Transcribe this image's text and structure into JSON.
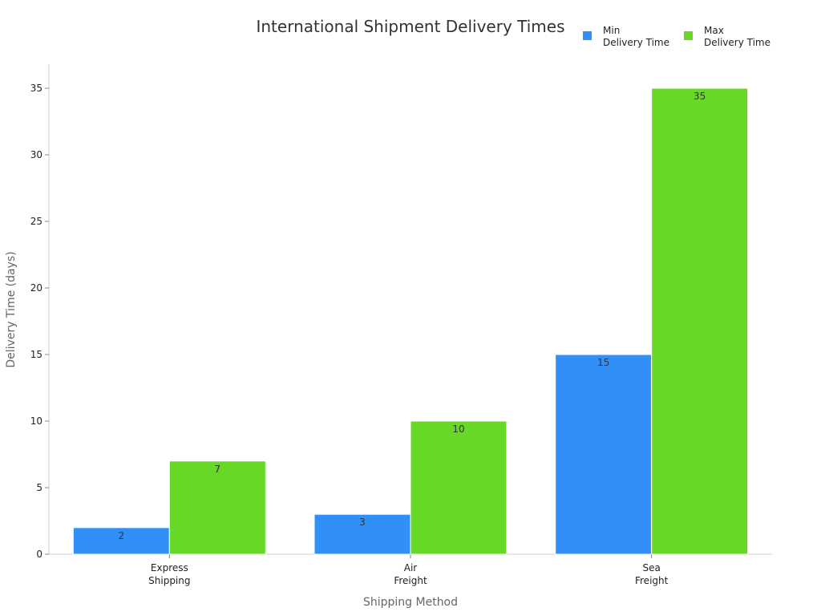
{
  "chart_data": {
    "type": "bar",
    "title": "International Shipment Delivery Times",
    "xlabel": "Shipping Method",
    "ylabel": "Delivery Time (days)",
    "categories": [
      [
        "Express",
        "Shipping"
      ],
      [
        "Air",
        "Freight"
      ],
      [
        "Sea",
        "Freight"
      ]
    ],
    "series": [
      {
        "name": [
          "Min",
          "Delivery Time"
        ],
        "values": [
          2,
          3,
          15
        ],
        "color": "#3190f7"
      },
      {
        "name": [
          "Max",
          "Delivery Time"
        ],
        "values": [
          7,
          10,
          35
        ],
        "color": "#66d927"
      }
    ],
    "ylim": [
      0,
      37
    ],
    "yticks": [
      0,
      5,
      10,
      15,
      20,
      25,
      30,
      35
    ],
    "grid": false,
    "legend_position": "top-right",
    "data_labels": true
  }
}
